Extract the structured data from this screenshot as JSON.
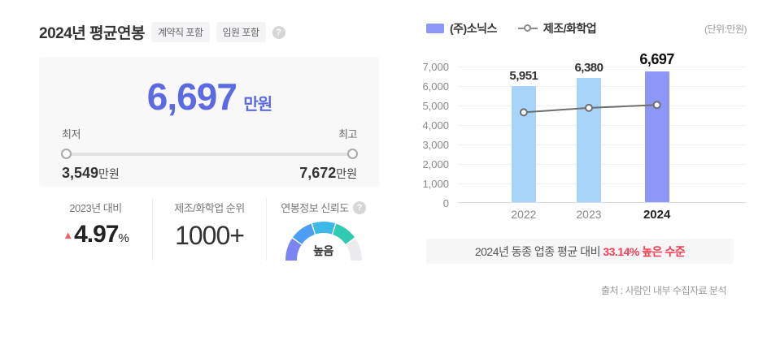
{
  "header": {
    "title": "2024년 평균연봉",
    "badges": [
      {
        "label": "계약직 포함"
      },
      {
        "label": "임원 포함"
      }
    ],
    "help_icon": "?"
  },
  "summary": {
    "amount": "6,697",
    "amount_unit": "만원",
    "amount_color": "#5b6ae2",
    "min_label": "최저",
    "max_label": "최고",
    "min_value": "3,549",
    "min_unit": "만원",
    "max_value": "7,672",
    "max_unit": "만원"
  },
  "stats": {
    "yoy": {
      "label": "2023년 대비",
      "direction": "up",
      "triangle": "▲",
      "value": "4.97",
      "unit": "%"
    },
    "rank": {
      "label": "제조/화학업 순위",
      "value": "1000+"
    },
    "reliability": {
      "label": "연봉정보 신뢰도",
      "help_icon": "?",
      "value": "높음",
      "gauge_segments": [
        "#7b85f2",
        "#4d9ef3",
        "#3db9e8",
        "#2ecbb2",
        "#ececee"
      ]
    }
  },
  "legend": {
    "company": {
      "label": "(주)소닉스",
      "swatch_color": "#8d97f5"
    },
    "industry": {
      "label": "제조/화학업",
      "line_color": "#8b8b8b"
    },
    "unit_note": "(단위:만원)"
  },
  "chart_data": {
    "type": "bar",
    "categories": [
      "2022",
      "2023",
      "2024"
    ],
    "series": [
      {
        "name": "(주)소닉스",
        "type": "bar",
        "values": [
          5951,
          6380,
          6697
        ],
        "bar_colors": [
          "#a8d4fa",
          "#a8d4fa",
          "#8d97f5"
        ]
      },
      {
        "name": "제조/화학업",
        "type": "line",
        "values": [
          4650,
          4880,
          5030
        ],
        "line_color": "#6e6e6e"
      }
    ],
    "value_labels": [
      "5,951",
      "6,380",
      "6,697"
    ],
    "highlight_category": "2024",
    "ylim": [
      0,
      7000
    ],
    "yticks": [
      "7,000",
      "6,000",
      "5,000",
      "4,000",
      "3,000",
      "2,000",
      "1,000",
      "0"
    ],
    "grid": true,
    "legend_position": "top",
    "title": "",
    "xlabel": "",
    "ylabel": ""
  },
  "banner": {
    "prefix": "2024년 동종 업종 평균 대비 ",
    "highlight": "33.14% 높은 수준",
    "highlight_color": "#fa3c53"
  },
  "footer": {
    "source": "출처 : 사람인 내부 수집자료 분석"
  }
}
